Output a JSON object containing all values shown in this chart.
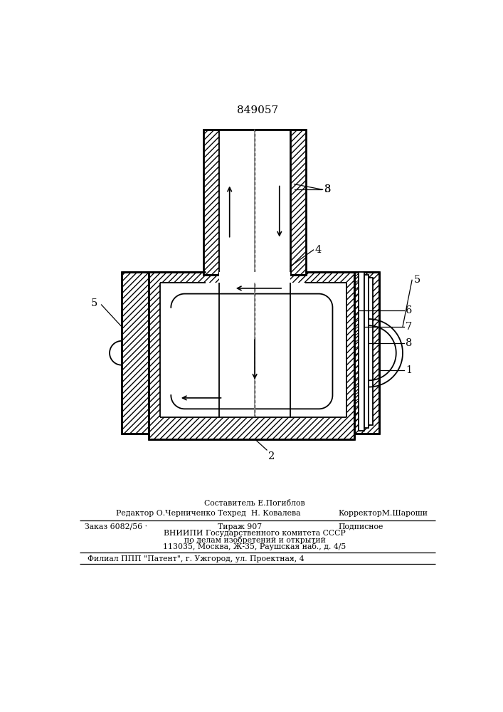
{
  "patent_number": "849057",
  "bg_color": "#ffffff",
  "lc": "#000000",
  "footer_sestavitel": "Составитель Е.Погиблов",
  "footer_redaktor": "Редактор О.Черниченко",
  "footer_tehred": "Техред  Н. Ковалева",
  "footer_korrektor": "КорректорМ.Шароши",
  "footer_zakaz": "Заказ 6082/56 ·",
  "footer_tirazh": "Тираж 907",
  "footer_podpisnoe": "Подписное",
  "footer_vniip1": "ВНИИПИ Государственного комитета СССР",
  "footer_vniip2": "по делам изобретений и открытий",
  "footer_vniip3": "113035, Москва, Ж-35, Раушская наб., д. 4/5",
  "footer_filial": "Филиал ППП \"Патент\", г. Ужгород, ул. Проектная, 4"
}
